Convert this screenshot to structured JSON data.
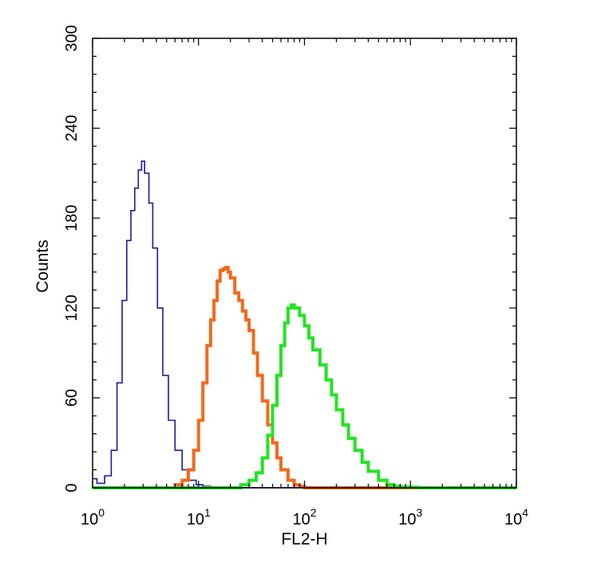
{
  "chart_data": {
    "type": "line",
    "title": "",
    "xlabel": "FL2-H",
    "ylabel": "Counts",
    "x_scale": "log",
    "xlim": [
      1,
      10000
    ],
    "ylim": [
      0,
      300
    ],
    "x_ticks": [
      {
        "value": 1,
        "base": "10",
        "exp": "0"
      },
      {
        "value": 10,
        "base": "10",
        "exp": "1"
      },
      {
        "value": 100,
        "base": "10",
        "exp": "2"
      },
      {
        "value": 1000,
        "base": "10",
        "exp": "3"
      },
      {
        "value": 10000,
        "base": "10",
        "exp": "4"
      }
    ],
    "y_ticks": [
      "0",
      "60",
      "120",
      "180",
      "240",
      "300"
    ],
    "grid": false,
    "legend": "none",
    "series": [
      {
        "color": "#1a1aa0",
        "x": [
          1,
          1.1,
          1.3,
          1.5,
          1.7,
          1.9,
          2.1,
          2.3,
          2.5,
          2.7,
          2.9,
          3.1,
          3.4,
          3.7,
          4.1,
          4.6,
          5.2,
          6.0,
          7.0,
          8.0,
          9.5,
          11,
          13,
          20,
          100,
          10000
        ],
        "y": [
          6,
          3,
          8,
          25,
          70,
          125,
          165,
          185,
          200,
          212,
          218,
          210,
          190,
          160,
          120,
          75,
          45,
          25,
          12,
          5,
          2,
          1,
          0,
          0,
          0,
          0
        ]
      },
      {
        "color": "#f26a1b",
        "x": [
          1,
          5,
          6,
          7,
          8,
          9,
          10,
          11,
          12,
          13,
          14,
          15,
          16,
          17,
          18,
          19,
          20,
          22,
          24,
          26,
          28,
          30,
          33,
          36,
          40,
          45,
          50,
          55,
          60,
          70,
          80,
          90,
          100,
          10000
        ],
        "y": [
          0,
          0,
          2,
          5,
          12,
          25,
          45,
          70,
          95,
          112,
          125,
          138,
          145,
          146,
          147,
          144,
          140,
          130,
          125,
          118,
          112,
          105,
          90,
          75,
          58,
          42,
          30,
          20,
          12,
          5,
          2,
          1,
          0,
          0
        ]
      },
      {
        "color": "#22e422",
        "x": [
          1,
          20,
          25,
          30,
          35,
          40,
          45,
          50,
          55,
          60,
          65,
          70,
          75,
          80,
          90,
          100,
          110,
          120,
          140,
          160,
          180,
          200,
          230,
          260,
          300,
          350,
          400,
          500,
          600,
          700,
          800,
          1000,
          1200,
          1500,
          10000
        ],
        "y": [
          0,
          0,
          2,
          5,
          10,
          20,
          35,
          55,
          75,
          95,
          110,
          120,
          122,
          120,
          115,
          108,
          100,
          92,
          82,
          72,
          62,
          52,
          42,
          33,
          25,
          17,
          11,
          5,
          2,
          1,
          0.5,
          0.3,
          0,
          0,
          0
        ]
      }
    ]
  }
}
